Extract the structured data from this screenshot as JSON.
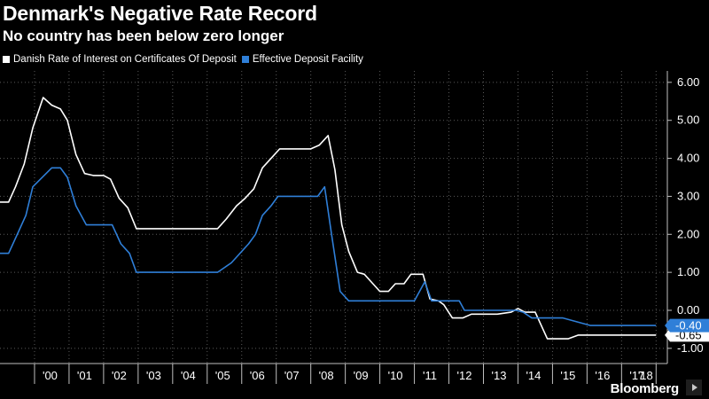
{
  "header": {
    "title": "Denmark's Negative Rate Record",
    "subtitle": "No country has been below zero longer"
  },
  "footer": {
    "brand": "Bloomberg"
  },
  "colors": {
    "background": "#000000",
    "series_1": "#ffffff",
    "series_2": "#2f7fd8",
    "grid": "#5a5a5a",
    "axis": "#bfbfbf"
  },
  "chart_data": {
    "type": "line",
    "y_axis_side": "right",
    "ylim": [
      -1.4,
      6.3
    ],
    "xlim": [
      1999.0,
      2018.3
    ],
    "y_ticks": [
      6,
      5,
      4,
      3,
      2,
      1,
      0,
      -1
    ],
    "y_tick_labels": [
      "6.00",
      "5.00",
      "4.00",
      "3.00",
      "2.00",
      "1.00",
      "0.00",
      "-1.00"
    ],
    "x_ticks": [
      2000,
      2001,
      2002,
      2003,
      2004,
      2005,
      2006,
      2007,
      2008,
      2009,
      2010,
      2011,
      2012,
      2013,
      2014,
      2015,
      2016,
      2017,
      2018
    ],
    "x_tick_labels": [
      "'00",
      "'01",
      "'02",
      "'03",
      "'04",
      "'05",
      "'06",
      "'07",
      "'08",
      "'09",
      "'10",
      "'11",
      "'12",
      "'13",
      "'14",
      "'15",
      "'16",
      "'17",
      "'18"
    ],
    "grid": true,
    "legend_position": "top-left",
    "series": [
      {
        "name": "Danish Rate of Interest on Certificates Of Deposit",
        "color": "#ffffff",
        "last_value_label": "-0.65",
        "points": [
          [
            1999.0,
            2.85
          ],
          [
            1999.25,
            2.85
          ],
          [
            1999.45,
            3.25
          ],
          [
            1999.7,
            3.85
          ],
          [
            1999.95,
            4.8
          ],
          [
            2000.25,
            5.6
          ],
          [
            2000.5,
            5.4
          ],
          [
            2000.75,
            5.3
          ],
          [
            2000.95,
            5.0
          ],
          [
            2001.2,
            4.1
          ],
          [
            2001.45,
            3.6
          ],
          [
            2001.7,
            3.55
          ],
          [
            2002.0,
            3.55
          ],
          [
            2002.2,
            3.45
          ],
          [
            2002.45,
            2.95
          ],
          [
            2002.7,
            2.7
          ],
          [
            2002.95,
            2.15
          ],
          [
            2003.3,
            2.15
          ],
          [
            2004.0,
            2.15
          ],
          [
            2005.0,
            2.15
          ],
          [
            2005.3,
            2.15
          ],
          [
            2005.55,
            2.4
          ],
          [
            2005.85,
            2.75
          ],
          [
            2006.1,
            2.95
          ],
          [
            2006.35,
            3.2
          ],
          [
            2006.6,
            3.75
          ],
          [
            2006.85,
            4.0
          ],
          [
            2007.1,
            4.25
          ],
          [
            2007.5,
            4.25
          ],
          [
            2008.0,
            4.25
          ],
          [
            2008.25,
            4.35
          ],
          [
            2008.5,
            4.6
          ],
          [
            2008.7,
            3.7
          ],
          [
            2008.9,
            2.25
          ],
          [
            2009.1,
            1.55
          ],
          [
            2009.35,
            1.0
          ],
          [
            2009.55,
            0.95
          ],
          [
            2009.8,
            0.7
          ],
          [
            2010.0,
            0.5
          ],
          [
            2010.25,
            0.5
          ],
          [
            2010.45,
            0.7
          ],
          [
            2010.7,
            0.7
          ],
          [
            2010.9,
            0.95
          ],
          [
            2011.25,
            0.95
          ],
          [
            2011.45,
            0.3
          ],
          [
            2011.7,
            0.25
          ],
          [
            2011.85,
            0.15
          ],
          [
            2012.1,
            -0.2
          ],
          [
            2012.4,
            -0.2
          ],
          [
            2012.65,
            -0.1
          ],
          [
            2013.0,
            -0.1
          ],
          [
            2013.4,
            -0.1
          ],
          [
            2013.8,
            -0.05
          ],
          [
            2014.0,
            0.05
          ],
          [
            2014.2,
            -0.05
          ],
          [
            2014.5,
            -0.05
          ],
          [
            2014.85,
            -0.75
          ],
          [
            2015.15,
            -0.75
          ],
          [
            2015.45,
            -0.75
          ],
          [
            2015.75,
            -0.65
          ],
          [
            2016.5,
            -0.65
          ],
          [
            2017.5,
            -0.65
          ],
          [
            2018.0,
            -0.65
          ]
        ]
      },
      {
        "name": "Effective Deposit Facility",
        "color": "#2f7fd8",
        "last_value_label": "-0.40",
        "points": [
          [
            1999.0,
            1.5
          ],
          [
            1999.25,
            1.5
          ],
          [
            1999.5,
            2.0
          ],
          [
            1999.75,
            2.5
          ],
          [
            1999.95,
            3.25
          ],
          [
            2000.5,
            3.75
          ],
          [
            2000.75,
            3.75
          ],
          [
            2000.95,
            3.5
          ],
          [
            2001.2,
            2.75
          ],
          [
            2001.5,
            2.25
          ],
          [
            2002.0,
            2.25
          ],
          [
            2002.25,
            2.25
          ],
          [
            2002.5,
            1.75
          ],
          [
            2002.75,
            1.5
          ],
          [
            2002.95,
            1.0
          ],
          [
            2003.5,
            1.0
          ],
          [
            2004.0,
            1.0
          ],
          [
            2005.0,
            1.0
          ],
          [
            2005.3,
            1.0
          ],
          [
            2005.7,
            1.25
          ],
          [
            2006.2,
            1.75
          ],
          [
            2006.4,
            2.0
          ],
          [
            2006.6,
            2.5
          ],
          [
            2006.85,
            2.75
          ],
          [
            2007.05,
            3.0
          ],
          [
            2007.5,
            3.0
          ],
          [
            2008.2,
            3.0
          ],
          [
            2008.4,
            3.25
          ],
          [
            2008.6,
            2.0
          ],
          [
            2008.85,
            0.5
          ],
          [
            2009.1,
            0.25
          ],
          [
            2009.5,
            0.25
          ],
          [
            2010.0,
            0.25
          ],
          [
            2010.5,
            0.25
          ],
          [
            2011.0,
            0.25
          ],
          [
            2011.3,
            0.75
          ],
          [
            2011.5,
            0.25
          ],
          [
            2012.0,
            0.25
          ],
          [
            2012.3,
            0.25
          ],
          [
            2012.45,
            0.0
          ],
          [
            2013.0,
            0.0
          ],
          [
            2013.5,
            0.0
          ],
          [
            2013.95,
            0.0
          ],
          [
            2014.15,
            -0.05
          ],
          [
            2014.4,
            -0.2
          ],
          [
            2015.0,
            -0.2
          ],
          [
            2015.3,
            -0.2
          ],
          [
            2015.7,
            -0.3
          ],
          [
            2016.1,
            -0.4
          ],
          [
            2017.0,
            -0.4
          ],
          [
            2018.0,
            -0.4
          ]
        ]
      }
    ]
  }
}
